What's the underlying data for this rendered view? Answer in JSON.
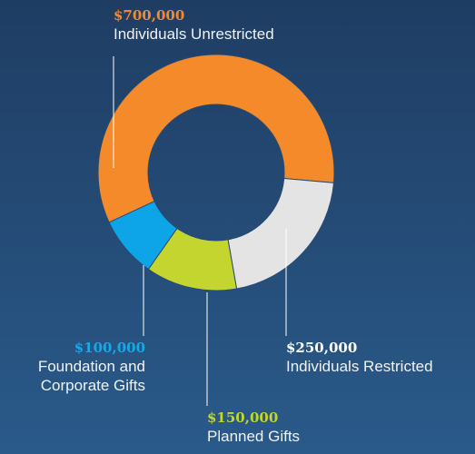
{
  "chart_data": {
    "type": "donut",
    "categories": [
      "Individuals Unrestricted",
      "Individuals Restricted",
      "Planned Gifts",
      "Foundation and Corporate Gifts"
    ],
    "values": [
      700000,
      250000,
      150000,
      100000
    ],
    "value_labels": [
      "$700,000",
      "$250,000",
      "$150,000",
      "$100,000"
    ],
    "colors": [
      "#f58a2a",
      "#e4e4e4",
      "#c3d52e",
      "#0ea5e8"
    ]
  }
}
